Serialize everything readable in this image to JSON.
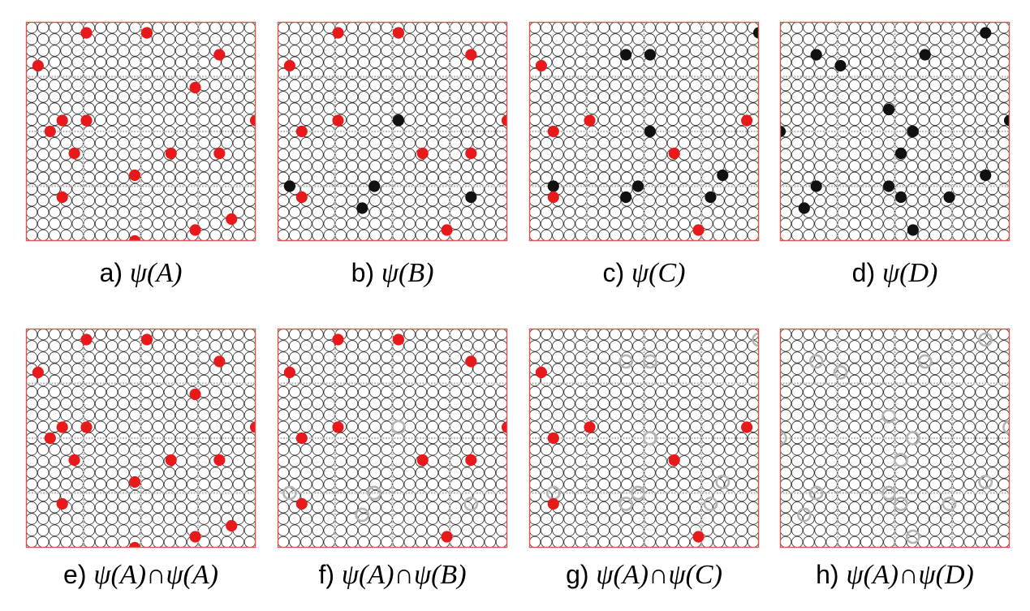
{
  "grid": {
    "cols": 20,
    "rows": 19
  },
  "colors": {
    "border": "#d9534f",
    "circle": "#2a2a2a",
    "guide": "#bdbdbd",
    "red": "#e8191b",
    "black": "#111111",
    "gray": "#b4b4b4"
  },
  "panels": [
    {
      "id": "a",
      "prefix": "a)",
      "formula": "ψ(A)",
      "red": [
        [
          5,
          1
        ],
        [
          10,
          1
        ],
        [
          16,
          3
        ],
        [
          1,
          4
        ],
        [
          14,
          6
        ],
        [
          3,
          9
        ],
        [
          5,
          9
        ],
        [
          19,
          9
        ],
        [
          2,
          10
        ],
        [
          4,
          12
        ],
        [
          12,
          12
        ],
        [
          16,
          12
        ],
        [
          9,
          14
        ],
        [
          3,
          16
        ],
        [
          17,
          18
        ],
        [
          14,
          19
        ],
        [
          9,
          20
        ]
      ],
      "black": [],
      "gray": []
    },
    {
      "id": "b",
      "prefix": "b)",
      "formula": "ψ(B)",
      "red": [
        [
          5,
          1
        ],
        [
          10,
          1
        ],
        [
          16,
          3
        ],
        [
          1,
          4
        ],
        [
          5,
          9
        ],
        [
          19,
          9
        ],
        [
          2,
          10
        ],
        [
          12,
          12
        ],
        [
          16,
          12
        ],
        [
          2,
          16
        ],
        [
          14,
          19
        ]
      ],
      "black": [
        [
          10,
          9
        ],
        [
          1,
          15
        ],
        [
          8,
          15
        ],
        [
          16,
          16
        ],
        [
          7,
          17
        ]
      ],
      "gray": []
    },
    {
      "id": "c",
      "prefix": "c)",
      "formula": "ψ(C)",
      "red": [
        [
          1,
          4
        ],
        [
          5,
          9
        ],
        [
          18,
          9
        ],
        [
          2,
          10
        ],
        [
          12,
          12
        ],
        [
          2,
          16
        ],
        [
          14,
          19
        ]
      ],
      "black": [
        [
          19,
          1
        ],
        [
          8,
          3
        ],
        [
          10,
          3
        ],
        [
          10,
          10
        ],
        [
          16,
          14
        ],
        [
          9,
          15
        ],
        [
          2,
          15
        ],
        [
          15,
          16
        ],
        [
          8,
          16
        ]
      ],
      "gray": []
    },
    {
      "id": "d",
      "prefix": "d)",
      "formula": "ψ(D)",
      "red": [],
      "black": [
        [
          17,
          1
        ],
        [
          3,
          3
        ],
        [
          12,
          3
        ],
        [
          5,
          4
        ],
        [
          9,
          8
        ],
        [
          19,
          9
        ],
        [
          0,
          10
        ],
        [
          11,
          10
        ],
        [
          10,
          12
        ],
        [
          17,
          14
        ],
        [
          3,
          15
        ],
        [
          9,
          15
        ],
        [
          10,
          16
        ],
        [
          2,
          17
        ],
        [
          14,
          16
        ],
        [
          11,
          19
        ]
      ],
      "gray": []
    },
    {
      "id": "e",
      "prefix": "e)",
      "formula": "ψ(A)∩ψ(A)",
      "red": [
        [
          5,
          1
        ],
        [
          10,
          1
        ],
        [
          16,
          3
        ],
        [
          1,
          4
        ],
        [
          14,
          6
        ],
        [
          3,
          9
        ],
        [
          5,
          9
        ],
        [
          19,
          9
        ],
        [
          2,
          10
        ],
        [
          4,
          12
        ],
        [
          12,
          12
        ],
        [
          16,
          12
        ],
        [
          9,
          14
        ],
        [
          3,
          16
        ],
        [
          17,
          18
        ],
        [
          14,
          19
        ],
        [
          9,
          20
        ]
      ],
      "black": [],
      "gray": []
    },
    {
      "id": "f",
      "prefix": "f)",
      "formula": "ψ(A)∩ψ(B)",
      "red": [
        [
          5,
          1
        ],
        [
          10,
          1
        ],
        [
          16,
          3
        ],
        [
          1,
          4
        ],
        [
          5,
          9
        ],
        [
          19,
          9
        ],
        [
          2,
          10
        ],
        [
          12,
          12
        ],
        [
          16,
          12
        ],
        [
          2,
          16
        ],
        [
          14,
          19
        ]
      ],
      "black": [],
      "gray": [
        [
          10,
          9
        ],
        [
          1,
          15
        ],
        [
          8,
          15
        ],
        [
          16,
          16
        ],
        [
          7,
          17
        ]
      ]
    },
    {
      "id": "g",
      "prefix": "g)",
      "formula": "ψ(A)∩ψ(C)",
      "red": [
        [
          1,
          4
        ],
        [
          5,
          9
        ],
        [
          18,
          9
        ],
        [
          2,
          10
        ],
        [
          12,
          12
        ],
        [
          2,
          16
        ],
        [
          14,
          19
        ]
      ],
      "black": [],
      "gray": [
        [
          19,
          1
        ],
        [
          8,
          3
        ],
        [
          10,
          3
        ],
        [
          10,
          10
        ],
        [
          16,
          14
        ],
        [
          9,
          15
        ],
        [
          2,
          15
        ],
        [
          15,
          16
        ],
        [
          8,
          16
        ]
      ]
    },
    {
      "id": "h",
      "prefix": "h)",
      "formula": "ψ(A)∩ψ(D)",
      "red": [],
      "black": [],
      "gray": [
        [
          17,
          1
        ],
        [
          3,
          3
        ],
        [
          12,
          3
        ],
        [
          5,
          4
        ],
        [
          9,
          8
        ],
        [
          19,
          9
        ],
        [
          0,
          10
        ],
        [
          11,
          10
        ],
        [
          10,
          12
        ],
        [
          17,
          14
        ],
        [
          3,
          15
        ],
        [
          9,
          15
        ],
        [
          10,
          16
        ],
        [
          2,
          17
        ],
        [
          14,
          16
        ],
        [
          11,
          19
        ]
      ]
    }
  ]
}
